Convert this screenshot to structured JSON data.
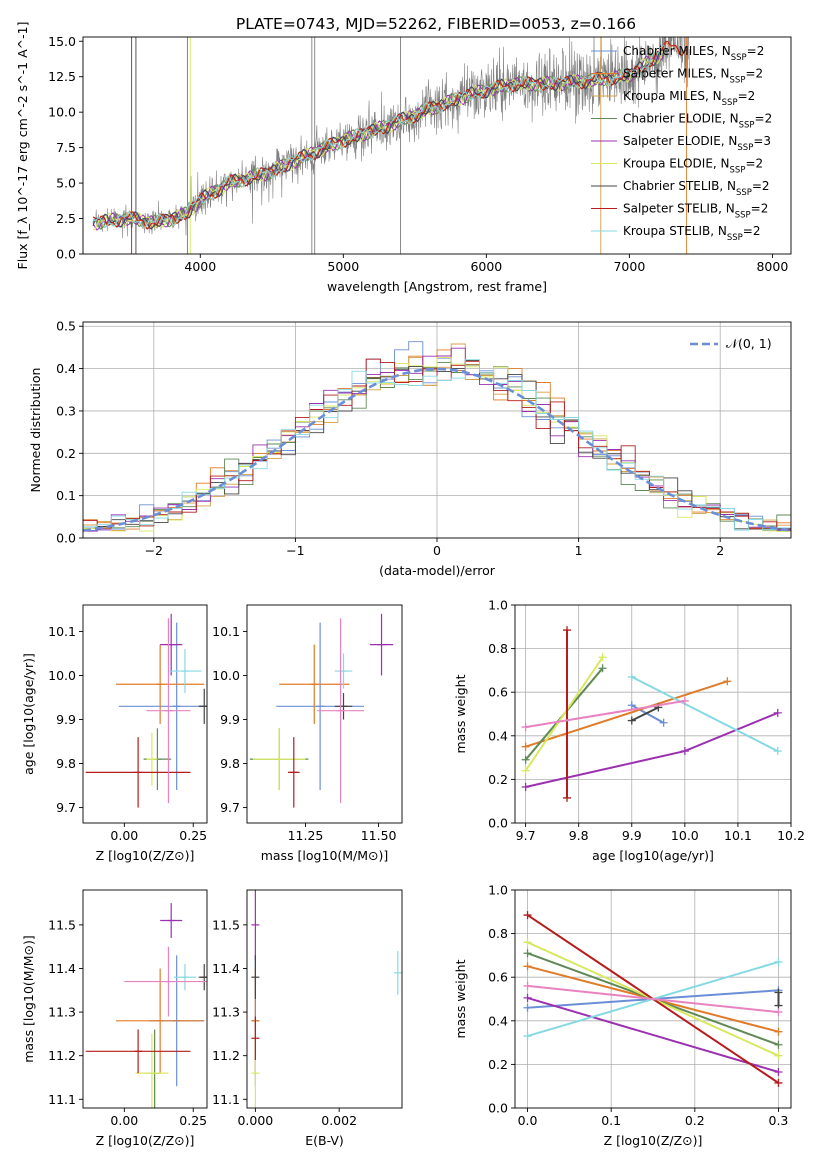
{
  "title": "PLATE=0743, MJD=52262, FIBERID=0053, z=0.166",
  "colors": {
    "cm": "#6b8fd6",
    "sm": "#e07b2a",
    "km": "#d4a04a",
    "ce": "#5f8a55",
    "se": "#9b30b0",
    "ke": "#d8e860",
    "cs": "#444444",
    "ss": "#b51c1c",
    "ks": "#86d9e3",
    "pink": "#e882c0",
    "obs": "#808080",
    "norm": "#6b8fd6"
  },
  "chart_data": [
    {
      "id": "spectrum",
      "type": "line",
      "title": "PLATE=0743, MJD=52262, FIBERID=0053, z=0.166",
      "xlabel": "wavelength [Angstrom, rest frame]",
      "ylabel": "Flux [f_λ 10^-17 erg cm^-2 s^-1 A^-1]",
      "xlim": [
        3180,
        8130
      ],
      "ylim": [
        0,
        15.3
      ],
      "xticks": [
        4000,
        5000,
        6000,
        7000,
        8000
      ],
      "yticks": [
        0.0,
        2.5,
        5.0,
        7.5,
        10.0,
        12.5,
        15.0
      ],
      "grid": false,
      "legend_position": "top-right",
      "legend": [
        {
          "label": "Chabrier MILES, N_SSP=2",
          "color_key": "cm"
        },
        {
          "label": "Salpeter MILES, N_SSP=2",
          "color_key": "sm"
        },
        {
          "label": "Kroupa MILES, N_SSP=2",
          "color_key": "km"
        },
        {
          "label": "Chabrier ELODIE, N_SSP=2",
          "color_key": "ce"
        },
        {
          "label": "Salpeter ELODIE, N_SSP=3",
          "color_key": "se"
        },
        {
          "label": "Kroupa ELODIE, N_SSP=2",
          "color_key": "ke"
        },
        {
          "label": "Chabrier STELIB, N_SSP=2",
          "color_key": "cs"
        },
        {
          "label": "Salpeter STELIB, N_SSP=2",
          "color_key": "ss"
        },
        {
          "label": "Kroupa STELIB, N_SSP=2",
          "color_key": "ks"
        }
      ],
      "continuum": {
        "x": [
          3250,
          3500,
          3700,
          3900,
          4000,
          4200,
          4500,
          4800,
          5000,
          5300,
          5600,
          5900,
          6200,
          6500,
          6800,
          7000,
          7200,
          7300,
          7400
        ],
        "y": [
          2.2,
          2.5,
          2.2,
          2.8,
          3.8,
          5.0,
          5.8,
          7.2,
          8.0,
          9.0,
          10.2,
          11.3,
          12.0,
          12.0,
          12.3,
          12.6,
          14.0,
          14.9,
          14.3
        ]
      }
    },
    {
      "id": "residual-hist",
      "type": "area",
      "xlabel": "(data-model)/error",
      "ylabel": "Normed distribution",
      "xlim": [
        -2.5,
        2.5
      ],
      "ylim": [
        0,
        0.51
      ],
      "xticks": [
        -2,
        -1,
        0,
        1,
        2
      ],
      "yticks": [
        0.0,
        0.1,
        0.2,
        0.3,
        0.4,
        0.5
      ],
      "grid": true,
      "legend_position": "top-right",
      "legend": [
        {
          "label": "𝒩(0, 1)",
          "color_key": "norm"
        }
      ],
      "bin_width": 0.1,
      "bin_start": -2.5
    },
    {
      "id": "z-age",
      "type": "scatter",
      "xlabel": "Z [log10(Z/Z⊙)]",
      "ylabel": "age  [log10(age/yr)]",
      "xlim": [
        -0.15,
        0.3
      ],
      "ylim": [
        9.665,
        10.16
      ],
      "xticks": [
        0.0,
        0.25
      ],
      "yticks": [
        9.7,
        9.8,
        9.9,
        10.0,
        10.1
      ],
      "grid": false,
      "points": [
        {
          "color_key": "cm",
          "x": 0.19,
          "y": 9.93,
          "xerr": 0.21,
          "yerr": 0.19
        },
        {
          "color_key": "sm",
          "x": 0.13,
          "y": 9.98,
          "xerr": 0.16,
          "yerr": 0.09
        },
        {
          "color_key": "ce",
          "x": 0.12,
          "y": 9.81,
          "xerr": 0.05,
          "yerr": 0.07
        },
        {
          "color_key": "se",
          "x": 0.17,
          "y": 10.07,
          "xerr": 0.04,
          "yerr": 0.07
        },
        {
          "color_key": "ke",
          "x": 0.1,
          "y": 9.81,
          "xerr": 0.02,
          "yerr": 0.06
        },
        {
          "color_key": "cs",
          "x": 0.29,
          "y": 9.93,
          "xerr": 0.02,
          "yerr": 0.04
        },
        {
          "color_key": "ss",
          "x": 0.05,
          "y": 9.78,
          "xerr": 0.19,
          "yerr": 0.08
        },
        {
          "color_key": "ks",
          "x": 0.22,
          "y": 10.01,
          "xerr": 0.06,
          "yerr": 0.05
        },
        {
          "color_key": "pink",
          "x": 0.16,
          "y": 9.92,
          "xerr": 0.08,
          "yerr": 0.21
        }
      ]
    },
    {
      "id": "mass-age",
      "type": "scatter",
      "xlabel": "mass [log10(M/M⊙)]",
      "ylabel": "",
      "xlim": [
        11.05,
        11.58
      ],
      "ylim": [
        9.665,
        10.16
      ],
      "xticks": [
        11.25,
        11.5
      ],
      "yticks": [
        9.7,
        9.8,
        9.9,
        10.0,
        10.1
      ],
      "grid": false,
      "points": [
        {
          "color_key": "cm",
          "x": 11.3,
          "y": 9.93,
          "xerr": 0.15,
          "yerr": 0.19
        },
        {
          "color_key": "sm",
          "x": 11.28,
          "y": 9.98,
          "xerr": 0.12,
          "yerr": 0.09
        },
        {
          "color_key": "ce",
          "x": 11.16,
          "y": 9.81,
          "xerr": 0.1,
          "yerr": 0.07
        },
        {
          "color_key": "se",
          "x": 11.51,
          "y": 10.07,
          "xerr": 0.04,
          "yerr": 0.07
        },
        {
          "color_key": "ke",
          "x": 11.16,
          "y": 9.81,
          "xerr": 0.09,
          "yerr": 0.07
        },
        {
          "color_key": "cs",
          "x": 11.38,
          "y": 9.93,
          "xerr": 0.03,
          "yerr": 0.03
        },
        {
          "color_key": "ss",
          "x": 11.21,
          "y": 9.78,
          "xerr": 0.02,
          "yerr": 0.08
        },
        {
          "color_key": "ks",
          "x": 11.38,
          "y": 10.01,
          "xerr": 0.03,
          "yerr": 0.04
        },
        {
          "color_key": "pink",
          "x": 11.37,
          "y": 9.92,
          "xerr": 0.08,
          "yerr": 0.21
        }
      ]
    },
    {
      "id": "age-weight",
      "type": "line",
      "xlabel": "age  [log10(age/yr)]",
      "ylabel": "mass weight",
      "xlim": [
        9.68,
        10.2
      ],
      "ylim": [
        0,
        1.0
      ],
      "xticks": [
        9.7,
        9.8,
        9.9,
        10.0,
        10.1,
        10.2
      ],
      "yticks": [
        0.0,
        0.2,
        0.4,
        0.6,
        0.8,
        1.0
      ],
      "grid": true,
      "series": [
        {
          "color_key": "cm",
          "x": [
            9.9,
            9.96
          ],
          "y": [
            0.54,
            0.46
          ]
        },
        {
          "color_key": "sm",
          "x": [
            9.7,
            10.08
          ],
          "y": [
            0.35,
            0.65
          ]
        },
        {
          "color_key": "ce",
          "x": [
            9.7,
            9.845
          ],
          "y": [
            0.29,
            0.71
          ]
        },
        {
          "color_key": "se",
          "x": [
            9.7,
            10.0,
            10.175
          ],
          "y": [
            0.165,
            0.33,
            0.505
          ]
        },
        {
          "color_key": "ke",
          "x": [
            9.7,
            9.845
          ],
          "y": [
            0.24,
            0.76
          ]
        },
        {
          "color_key": "cs",
          "x": [
            9.9,
            9.95
          ],
          "y": [
            0.47,
            0.53
          ]
        },
        {
          "color_key": "ss",
          "x": [
            9.778,
            9.778
          ],
          "y": [
            0.115,
            0.885
          ]
        },
        {
          "color_key": "ks",
          "x": [
            9.9,
            10.175
          ],
          "y": [
            0.67,
            0.33
          ]
        },
        {
          "color_key": "pink",
          "x": [
            9.7,
            10.0
          ],
          "y": [
            0.44,
            0.56
          ]
        }
      ]
    },
    {
      "id": "z-mass",
      "type": "scatter",
      "xlabel": "Z [log10(Z/Z⊙)]",
      "ylabel": "mass [log10(M/M⊙)]",
      "xlim": [
        -0.15,
        0.3
      ],
      "ylim": [
        11.08,
        11.58
      ],
      "xticks": [
        0.0,
        0.25
      ],
      "yticks": [
        11.1,
        11.2,
        11.3,
        11.4,
        11.5
      ],
      "grid": false,
      "points": [
        {
          "color_key": "cm",
          "x": 0.19,
          "y": 11.28,
          "xerr": 0.1,
          "yerr": 0.15
        },
        {
          "color_key": "sm",
          "x": 0.13,
          "y": 11.28,
          "xerr": 0.16,
          "yerr": 0.12
        },
        {
          "color_key": "ce",
          "x": 0.11,
          "y": 11.16,
          "xerr": 0.02,
          "yerr": 0.1
        },
        {
          "color_key": "se",
          "x": 0.17,
          "y": 11.51,
          "xerr": 0.04,
          "yerr": 0.04
        },
        {
          "color_key": "ke",
          "x": 0.1,
          "y": 11.16,
          "xerr": 0.06,
          "yerr": 0.09
        },
        {
          "color_key": "cs",
          "x": 0.29,
          "y": 11.38,
          "xerr": 0.02,
          "yerr": 0.03
        },
        {
          "color_key": "ss",
          "x": 0.05,
          "y": 11.21,
          "xerr": 0.19,
          "yerr": 0.05
        },
        {
          "color_key": "ks",
          "x": 0.22,
          "y": 11.38,
          "xerr": 0.04,
          "yerr": 0.03
        },
        {
          "color_key": "pink",
          "x": 0.16,
          "y": 11.37,
          "xerr": 0.16,
          "yerr": 0.08
        }
      ]
    },
    {
      "id": "ebv-mass",
      "type": "scatter",
      "xlabel": "E(B-V)",
      "ylabel": "",
      "xlim": [
        -0.0002,
        0.0035
      ],
      "ylim": [
        11.08,
        11.58
      ],
      "xticks": [
        0.0,
        0.002
      ],
      "yticks": [
        11.1,
        11.2,
        11.3,
        11.4,
        11.5
      ],
      "grid": false,
      "points": [
        {
          "color_key": "cm",
          "x": 0.0,
          "y": 11.28,
          "xerr": 0,
          "yerr": 0.15
        },
        {
          "color_key": "sm",
          "x": 0.0,
          "y": 11.28,
          "xerr": 0,
          "yerr": 0.12
        },
        {
          "color_key": "se",
          "x": 0.0,
          "y": 11.5,
          "xerr": 0,
          "yerr": 0.08
        },
        {
          "color_key": "ke",
          "x": 0.0,
          "y": 11.16,
          "xerr": 0,
          "yerr": 0.09
        },
        {
          "color_key": "cs",
          "x": 0.0,
          "y": 11.38,
          "xerr": 0,
          "yerr": 0.05
        },
        {
          "color_key": "ss",
          "x": 0.0,
          "y": 11.24,
          "xerr": 0,
          "yerr": 0.05
        },
        {
          "color_key": "ks",
          "x": 0.0034,
          "y": 11.39,
          "xerr": 0,
          "yerr": 0.05
        }
      ]
    },
    {
      "id": "z-weight",
      "type": "line",
      "xlabel": "Z [log10(Z/Z⊙)]",
      "ylabel": "mass weight",
      "xlim": [
        -0.015,
        0.315
      ],
      "ylim": [
        0,
        1.0
      ],
      "xticks": [
        0.0,
        0.1,
        0.2,
        0.3
      ],
      "yticks": [
        0.0,
        0.2,
        0.4,
        0.6,
        0.8,
        1.0
      ],
      "grid": true,
      "series": [
        {
          "color_key": "cm",
          "x": [
            0.0,
            0.3
          ],
          "y": [
            0.46,
            0.54
          ]
        },
        {
          "color_key": "sm",
          "x": [
            0.0,
            0.3
          ],
          "y": [
            0.65,
            0.35
          ]
        },
        {
          "color_key": "ce",
          "x": [
            0.0,
            0.3
          ],
          "y": [
            0.71,
            0.29
          ]
        },
        {
          "color_key": "se",
          "x": [
            0.0,
            0.3
          ],
          "y": [
            0.505,
            0.165
          ]
        },
        {
          "color_key": "ke",
          "x": [
            0.0,
            0.3
          ],
          "y": [
            0.76,
            0.24
          ]
        },
        {
          "color_key": "cs",
          "x": [
            0.3,
            0.3
          ],
          "y": [
            0.47,
            0.53
          ]
        },
        {
          "color_key": "ss",
          "x": [
            0.0,
            0.3
          ],
          "y": [
            0.885,
            0.115
          ]
        },
        {
          "color_key": "ks",
          "x": [
            0.0,
            0.3
          ],
          "y": [
            0.33,
            0.67
          ]
        },
        {
          "color_key": "pink",
          "x": [
            0.0,
            0.3
          ],
          "y": [
            0.56,
            0.44
          ]
        }
      ]
    }
  ]
}
